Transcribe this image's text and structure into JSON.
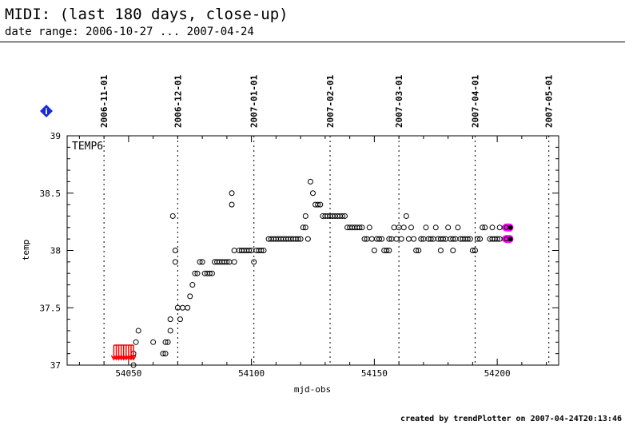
{
  "header": {
    "title": "MIDI: (last 180 days, close-up)",
    "subtitle": "date range: 2006-10-27 ... 2007-04-24"
  },
  "footer": {
    "credit": "created by trendPlotter on 2007-04-24T20:13:46"
  },
  "info_badge": "i",
  "colors": {
    "marker_stroke": "#000000",
    "latest_highlight": "#ff00ff",
    "out_of_range_marker": "#ff0000",
    "info_badge": "#1a2bd8"
  },
  "chart_data": {
    "type": "scatter",
    "panel_label": "TEMP6",
    "xlabel": "mjd-obs",
    "ylabel": "temp",
    "xlim": [
      54025,
      54225
    ],
    "ylim": [
      37,
      39
    ],
    "x_ticks": [
      54050,
      54100,
      54150,
      54200
    ],
    "y_ticks": [
      37,
      37.5,
      38,
      38.5,
      39
    ],
    "date_markers": [
      {
        "label": "2006-11-01",
        "mjd": 54040
      },
      {
        "label": "2006-12-01",
        "mjd": 54070
      },
      {
        "label": "2007-01-01",
        "mjd": 54101
      },
      {
        "label": "2007-02-01",
        "mjd": 54132
      },
      {
        "label": "2007-03-01",
        "mjd": 54160
      },
      {
        "label": "2007-04-01",
        "mjd": 54191
      },
      {
        "label": "2007-05-01",
        "mjd": 54221
      }
    ],
    "out_of_range_below_x": [
      54044,
      54045,
      54046,
      54047,
      54048,
      54049,
      54050,
      54051,
      54052
    ],
    "latest_points": [
      {
        "x": 54205,
        "y": 38.2
      },
      {
        "x": 54205,
        "y": 38.1
      }
    ],
    "points": [
      {
        "x": 54052,
        "y": 37.1
      },
      {
        "x": 54052,
        "y": 37.0
      },
      {
        "x": 54053,
        "y": 37.2
      },
      {
        "x": 54054,
        "y": 37.3
      },
      {
        "x": 54060,
        "y": 37.2
      },
      {
        "x": 54064,
        "y": 37.1
      },
      {
        "x": 54065,
        "y": 37.1
      },
      {
        "x": 54065,
        "y": 37.2
      },
      {
        "x": 54066,
        "y": 37.2
      },
      {
        "x": 54067,
        "y": 37.3
      },
      {
        "x": 54067,
        "y": 37.4
      },
      {
        "x": 54068,
        "y": 38.3
      },
      {
        "x": 54069,
        "y": 38.0
      },
      {
        "x": 54069,
        "y": 37.9
      },
      {
        "x": 54070,
        "y": 37.5
      },
      {
        "x": 54071,
        "y": 37.4
      },
      {
        "x": 54072,
        "y": 37.5
      },
      {
        "x": 54074,
        "y": 37.5
      },
      {
        "x": 54075,
        "y": 37.6
      },
      {
        "x": 54076,
        "y": 37.7
      },
      {
        "x": 54077,
        "y": 37.8
      },
      {
        "x": 54078,
        "y": 37.8
      },
      {
        "x": 54079,
        "y": 37.9
      },
      {
        "x": 54080,
        "y": 37.9
      },
      {
        "x": 54081,
        "y": 37.8
      },
      {
        "x": 54082,
        "y": 37.8
      },
      {
        "x": 54083,
        "y": 37.8
      },
      {
        "x": 54084,
        "y": 37.8
      },
      {
        "x": 54085,
        "y": 37.9
      },
      {
        "x": 54086,
        "y": 37.9
      },
      {
        "x": 54087,
        "y": 37.9
      },
      {
        "x": 54088,
        "y": 37.9
      },
      {
        "x": 54089,
        "y": 37.9
      },
      {
        "x": 54090,
        "y": 37.9
      },
      {
        "x": 54091,
        "y": 37.9
      },
      {
        "x": 54092,
        "y": 38.5
      },
      {
        "x": 54092,
        "y": 38.4
      },
      {
        "x": 54093,
        "y": 38.0
      },
      {
        "x": 54093,
        "y": 37.9
      },
      {
        "x": 54095,
        "y": 38.0
      },
      {
        "x": 54096,
        "y": 38.0
      },
      {
        "x": 54097,
        "y": 38.0
      },
      {
        "x": 54098,
        "y": 38.0
      },
      {
        "x": 54099,
        "y": 38.0
      },
      {
        "x": 54100,
        "y": 38.0
      },
      {
        "x": 54101,
        "y": 37.9
      },
      {
        "x": 54102,
        "y": 38.0
      },
      {
        "x": 54103,
        "y": 38.0
      },
      {
        "x": 54104,
        "y": 38.0
      },
      {
        "x": 54105,
        "y": 38.0
      },
      {
        "x": 54107,
        "y": 38.1
      },
      {
        "x": 54108,
        "y": 38.1
      },
      {
        "x": 54109,
        "y": 38.1
      },
      {
        "x": 54110,
        "y": 38.1
      },
      {
        "x": 54111,
        "y": 38.1
      },
      {
        "x": 54112,
        "y": 38.1
      },
      {
        "x": 54113,
        "y": 38.1
      },
      {
        "x": 54114,
        "y": 38.1
      },
      {
        "x": 54115,
        "y": 38.1
      },
      {
        "x": 54116,
        "y": 38.1
      },
      {
        "x": 54117,
        "y": 38.1
      },
      {
        "x": 54118,
        "y": 38.1
      },
      {
        "x": 54119,
        "y": 38.1
      },
      {
        "x": 54120,
        "y": 38.1
      },
      {
        "x": 54121,
        "y": 38.2
      },
      {
        "x": 54122,
        "y": 38.3
      },
      {
        "x": 54122,
        "y": 38.2
      },
      {
        "x": 54123,
        "y": 38.1
      },
      {
        "x": 54124,
        "y": 38.6
      },
      {
        "x": 54125,
        "y": 38.5
      },
      {
        "x": 54126,
        "y": 38.4
      },
      {
        "x": 54127,
        "y": 38.4
      },
      {
        "x": 54128,
        "y": 38.4
      },
      {
        "x": 54129,
        "y": 38.3
      },
      {
        "x": 54130,
        "y": 38.3
      },
      {
        "x": 54131,
        "y": 38.3
      },
      {
        "x": 54132,
        "y": 38.3
      },
      {
        "x": 54133,
        "y": 38.3
      },
      {
        "x": 54134,
        "y": 38.3
      },
      {
        "x": 54135,
        "y": 38.3
      },
      {
        "x": 54136,
        "y": 38.3
      },
      {
        "x": 54137,
        "y": 38.3
      },
      {
        "x": 54138,
        "y": 38.3
      },
      {
        "x": 54139,
        "y": 38.2
      },
      {
        "x": 54140,
        "y": 38.2
      },
      {
        "x": 54141,
        "y": 38.2
      },
      {
        "x": 54142,
        "y": 38.2
      },
      {
        "x": 54143,
        "y": 38.2
      },
      {
        "x": 54144,
        "y": 38.2
      },
      {
        "x": 54145,
        "y": 38.2
      },
      {
        "x": 54146,
        "y": 38.1
      },
      {
        "x": 54147,
        "y": 38.1
      },
      {
        "x": 54148,
        "y": 38.2
      },
      {
        "x": 54149,
        "y": 38.1
      },
      {
        "x": 54150,
        "y": 38.0
      },
      {
        "x": 54151,
        "y": 38.1
      },
      {
        "x": 54152,
        "y": 38.1
      },
      {
        "x": 54153,
        "y": 38.1
      },
      {
        "x": 54154,
        "y": 38.0
      },
      {
        "x": 54155,
        "y": 38.0
      },
      {
        "x": 54156,
        "y": 38.0
      },
      {
        "x": 54156,
        "y": 38.1
      },
      {
        "x": 54157,
        "y": 38.1
      },
      {
        "x": 54158,
        "y": 38.2
      },
      {
        "x": 54159,
        "y": 38.1
      },
      {
        "x": 54160,
        "y": 38.2
      },
      {
        "x": 54161,
        "y": 38.1
      },
      {
        "x": 54162,
        "y": 38.2
      },
      {
        "x": 54163,
        "y": 38.3
      },
      {
        "x": 54164,
        "y": 38.1
      },
      {
        "x": 54165,
        "y": 38.2
      },
      {
        "x": 54166,
        "y": 38.1
      },
      {
        "x": 54167,
        "y": 38.0
      },
      {
        "x": 54168,
        "y": 38.0
      },
      {
        "x": 54169,
        "y": 38.1
      },
      {
        "x": 54170,
        "y": 38.1
      },
      {
        "x": 54171,
        "y": 38.2
      },
      {
        "x": 54172,
        "y": 38.1
      },
      {
        "x": 54173,
        "y": 38.1
      },
      {
        "x": 54174,
        "y": 38.1
      },
      {
        "x": 54175,
        "y": 38.2
      },
      {
        "x": 54176,
        "y": 38.1
      },
      {
        "x": 54177,
        "y": 38.0
      },
      {
        "x": 54177,
        "y": 38.1
      },
      {
        "x": 54178,
        "y": 38.1
      },
      {
        "x": 54179,
        "y": 38.1
      },
      {
        "x": 54180,
        "y": 38.2
      },
      {
        "x": 54181,
        "y": 38.1
      },
      {
        "x": 54182,
        "y": 38.0
      },
      {
        "x": 54182,
        "y": 38.1
      },
      {
        "x": 54183,
        "y": 38.1
      },
      {
        "x": 54184,
        "y": 38.2
      },
      {
        "x": 54185,
        "y": 38.1
      },
      {
        "x": 54186,
        "y": 38.1
      },
      {
        "x": 54187,
        "y": 38.1
      },
      {
        "x": 54188,
        "y": 38.1
      },
      {
        "x": 54189,
        "y": 38.1
      },
      {
        "x": 54190,
        "y": 38.0
      },
      {
        "x": 54191,
        "y": 38.0
      },
      {
        "x": 54192,
        "y": 38.1
      },
      {
        "x": 54193,
        "y": 38.1
      },
      {
        "x": 54194,
        "y": 38.2
      },
      {
        "x": 54195,
        "y": 38.2
      },
      {
        "x": 54197,
        "y": 38.1
      },
      {
        "x": 54198,
        "y": 38.1
      },
      {
        "x": 54198,
        "y": 38.2
      },
      {
        "x": 54199,
        "y": 38.1
      },
      {
        "x": 54200,
        "y": 38.1
      },
      {
        "x": 54201,
        "y": 38.1
      },
      {
        "x": 54201,
        "y": 38.2
      },
      {
        "x": 54203,
        "y": 38.2
      },
      {
        "x": 54203,
        "y": 38.1
      },
      {
        "x": 54204,
        "y": 38.1
      },
      {
        "x": 54204,
        "y": 38.2
      }
    ]
  }
}
